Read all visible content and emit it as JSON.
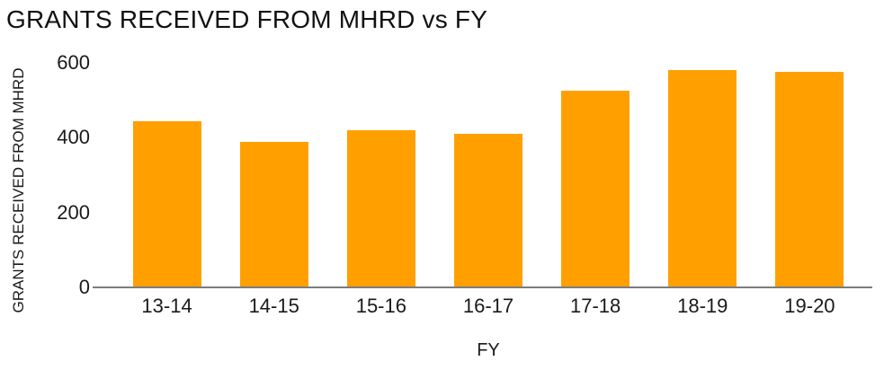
{
  "chart_data": {
    "type": "bar",
    "title": "GRANTS RECEIVED FROM MHRD vs FY",
    "xlabel": "FY",
    "ylabel": "GRANTS RECEIVED FROM MHRD",
    "categories": [
      "13-14",
      "14-15",
      "15-16",
      "16-17",
      "17-18",
      "18-19",
      "19-20"
    ],
    "values": [
      445,
      390,
      420,
      410,
      525,
      580,
      575
    ],
    "ylim": [
      0,
      600
    ],
    "yticks": [
      0,
      200,
      400,
      600
    ],
    "grid": false,
    "legend": false,
    "bar_color": "#ffa000",
    "axis_line_color": "#7d7d7d",
    "text_color": "#1a1a1a"
  }
}
